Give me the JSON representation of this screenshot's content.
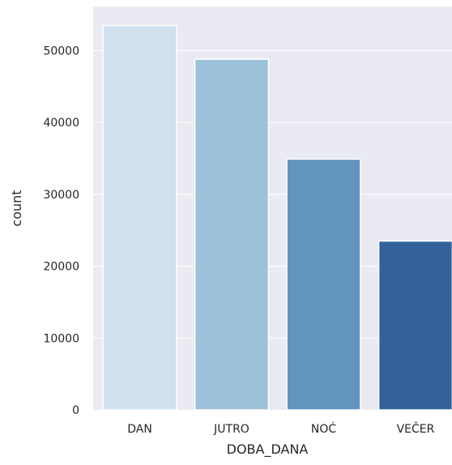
{
  "chart_data": {
    "type": "bar",
    "categories": [
      "DAN",
      "JUTRO",
      "NOĆ",
      "VEČER"
    ],
    "values": [
      53500,
      48800,
      34900,
      23500
    ],
    "xlabel": "DOBA_DANA",
    "ylabel": "count",
    "ylim": [
      0,
      57000
    ],
    "yticks": [
      0,
      10000,
      20000,
      30000,
      40000,
      50000
    ],
    "ytick_labels": [
      "0",
      "10000",
      "20000",
      "30000",
      "40000",
      "50000"
    ],
    "grid": true,
    "legend": "none",
    "colors": {
      "plot_background": "#eaeaf2",
      "gridline": "#ffffff",
      "bars": [
        "#d1e1ef",
        "#9cc1d8",
        "#6195bd",
        "#33629b"
      ]
    }
  }
}
